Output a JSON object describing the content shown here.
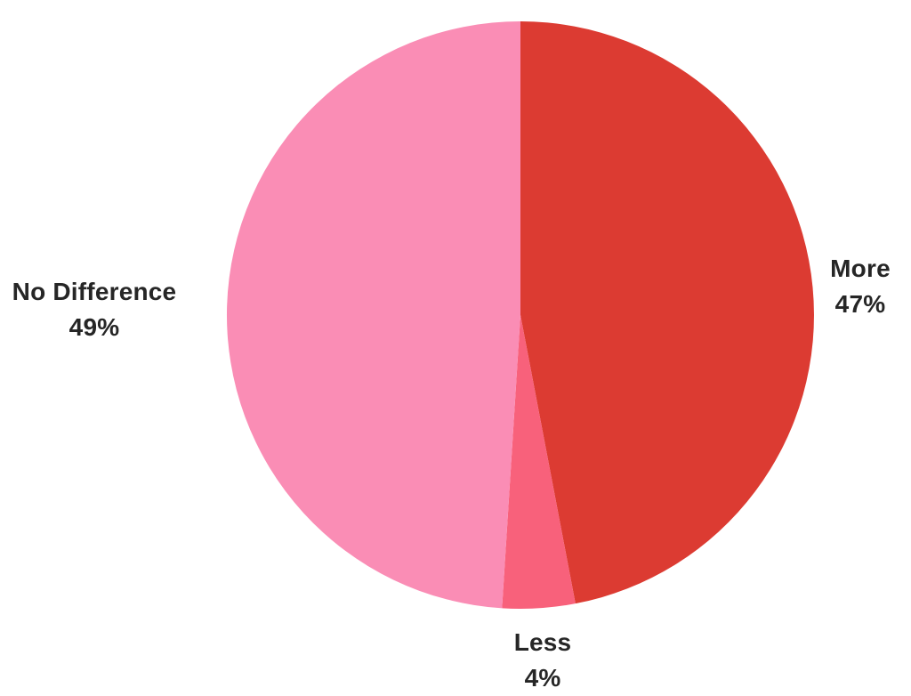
{
  "chart_data": {
    "type": "pie",
    "start_angle": "top",
    "direction": "clockwise",
    "label_position": "outside",
    "legend": "none",
    "background_color": "#ffffff",
    "label_text_color": "#262626",
    "total": 100,
    "slices": [
      {
        "id": "more",
        "label": "More",
        "value": 47,
        "percent_label": "47%",
        "color": "#DC3B32"
      },
      {
        "id": "less",
        "label": "Less",
        "value": 4,
        "percent_label": "4%",
        "color": "#F8617B"
      },
      {
        "id": "no-difference",
        "label": "No Difference",
        "value": 49,
        "percent_label": "49%",
        "color": "#FA8DB5"
      }
    ]
  }
}
